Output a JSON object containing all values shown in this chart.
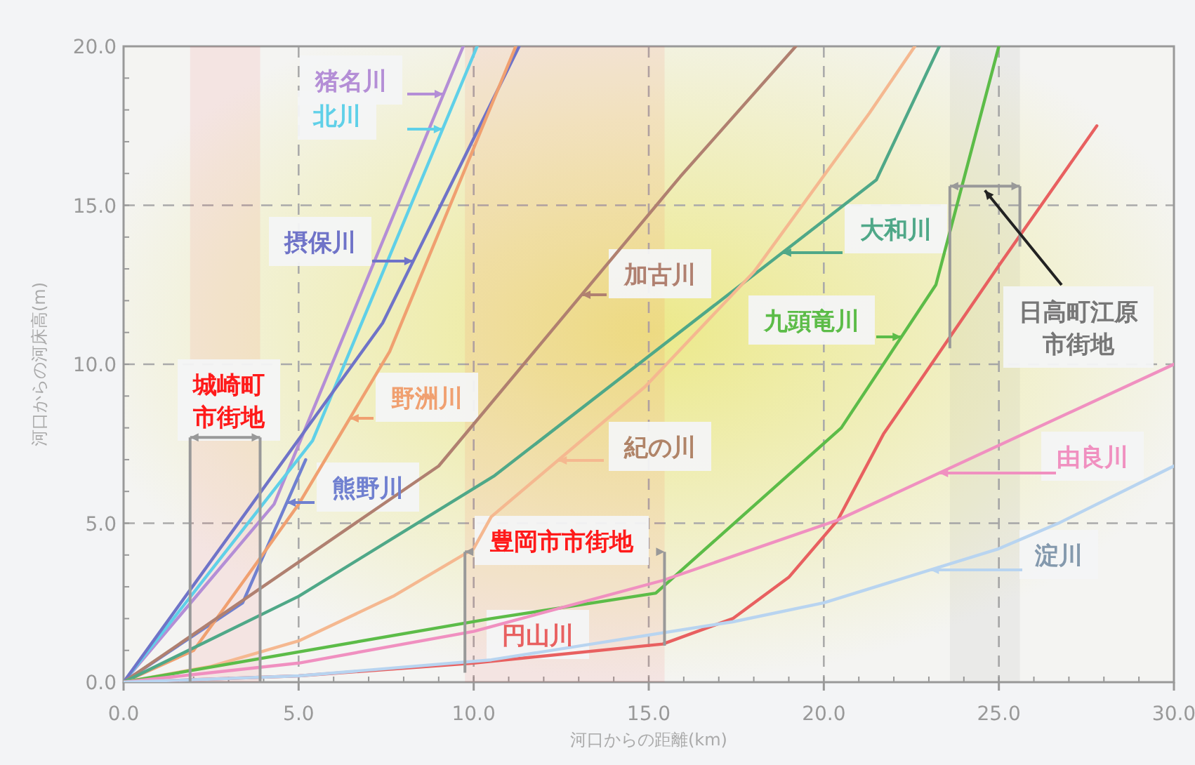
{
  "chart_data": {
    "type": "line",
    "xlabel": "河口からの距離(km)",
    "ylabel": "河口からの河床高(m)",
    "xlim": [
      0,
      30
    ],
    "ylim": [
      0,
      20
    ],
    "xticks": [
      {
        "value": 0,
        "label": "0.0"
      },
      {
        "value": 5,
        "label": "5.0"
      },
      {
        "value": 10,
        "label": "10.0"
      },
      {
        "value": 15,
        "label": "15.0"
      },
      {
        "value": 20,
        "label": "20.0"
      },
      {
        "value": 25,
        "label": "25.0"
      },
      {
        "value": 30,
        "label": "30.0"
      }
    ],
    "yticks": [
      {
        "value": 0,
        "label": "0.0"
      },
      {
        "value": 5,
        "label": "5.0"
      },
      {
        "value": 10,
        "label": "10.0"
      },
      {
        "value": 15,
        "label": "15.0"
      },
      {
        "value": 20,
        "label": "20.0"
      }
    ],
    "grid": true,
    "legend": "center",
    "marker": "none",
    "line_style": "solid",
    "series": [
      {
        "name": "猪名川",
        "color": "#b48ed6",
        "x": [
          0,
          4.3,
          9.7
        ],
        "values": [
          0,
          5.6,
          20
        ]
      },
      {
        "name": "北川",
        "color": "#5fd0e8",
        "x": [
          0,
          5.4,
          10.1
        ],
        "values": [
          0,
          7.6,
          20
        ]
      },
      {
        "name": "摂保川",
        "color": "#6f73c8",
        "x": [
          0,
          7.4,
          11.3
        ],
        "values": [
          0,
          11.3,
          20
        ]
      },
      {
        "name": "熊野川",
        "color": "#7080d0",
        "x": [
          0,
          3.4,
          5.2
        ],
        "values": [
          0,
          2.5,
          7
        ]
      },
      {
        "name": "野洲川",
        "color": "#f0a070",
        "x": [
          0,
          2,
          3.7,
          5,
          7.6,
          11.2
        ],
        "values": [
          0,
          1,
          3.6,
          5.6,
          10.4,
          20
        ]
      },
      {
        "name": "加古川",
        "color": "#b08070",
        "x": [
          0,
          9,
          15.9,
          19.2
        ],
        "values": [
          0,
          6.8,
          15.9,
          20
        ]
      },
      {
        "name": "大和川",
        "color": "#4fa888",
        "x": [
          0,
          5,
          10.6,
          21.5,
          23.3
        ],
        "values": [
          0,
          2.7,
          6.5,
          15.8,
          20
        ]
      },
      {
        "name": "紀の川",
        "color": "#f5b890",
        "x": [
          0,
          2.5,
          5,
          7.7,
          10,
          10.5,
          14.9,
          18,
          21.3,
          22.6
        ],
        "values": [
          0,
          0.5,
          1.3,
          2.7,
          4.2,
          5.2,
          9.3,
          12.9,
          17.9,
          20
        ]
      },
      {
        "name": "九頭竜川",
        "color": "#5cbc48",
        "x": [
          0,
          10.5,
          15.2,
          20.5,
          23.2,
          25
        ],
        "values": [
          0,
          2,
          2.8,
          8,
          12.5,
          20
        ]
      },
      {
        "name": "円山川",
        "color": "#e86060",
        "x": [
          0,
          5,
          10,
          15.4,
          17.4,
          19,
          20.4,
          21.7,
          25,
          27.8
        ],
        "values": [
          0,
          0.2,
          0.6,
          1.2,
          2,
          3.3,
          5.1,
          7.8,
          13.1,
          17.5
        ]
      },
      {
        "name": "由良川",
        "color": "#f090c0",
        "x": [
          0,
          5,
          10,
          15.4,
          20.4,
          30
        ],
        "values": [
          0,
          0.6,
          1.6,
          3.2,
          5.1,
          10
        ]
      },
      {
        "name": "淀川",
        "color": "#b8d4f0",
        "x": [
          0,
          5,
          10.5,
          17.4,
          20,
          25,
          26.7,
          30
        ],
        "values": [
          0,
          0.2,
          0.7,
          1.9,
          2.5,
          4.2,
          5,
          6.8
        ]
      }
    ],
    "bands": [
      {
        "axis": "x",
        "from": 1.9,
        "to": 3.9,
        "label": "城崎町市街地",
        "color": "#ff1a1a"
      },
      {
        "axis": "x",
        "from": 9.75,
        "to": 15.45,
        "label": "豊岡市市街地",
        "color": "#ff1a1a"
      },
      {
        "axis": "x",
        "from": 23.6,
        "to": 25.6,
        "label": "日高町江原市街地",
        "color": "#777777"
      }
    ]
  }
}
